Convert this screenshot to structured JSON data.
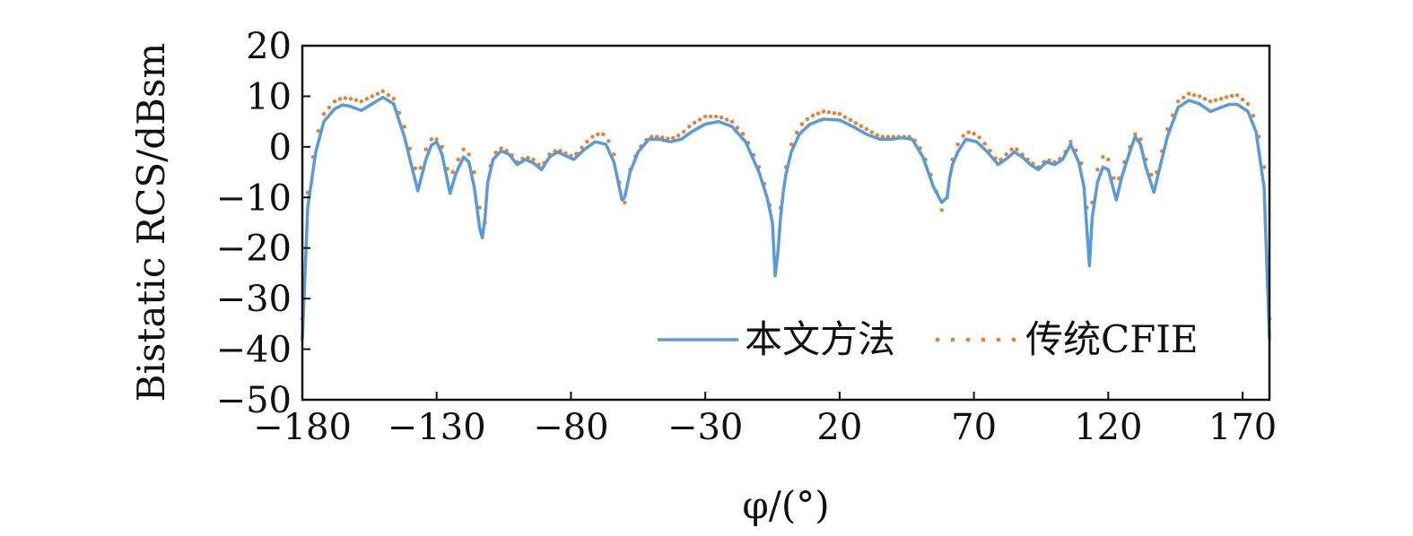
{
  "chart_data": {
    "type": "line",
    "title": "",
    "xlabel": "φ/(°)",
    "ylabel": "Bistatic RCS/dBsm",
    "xlim": [
      -180,
      180
    ],
    "ylim": [
      -50,
      20
    ],
    "xticks": [
      -180,
      -130,
      -80,
      -30,
      20,
      70,
      120,
      170
    ],
    "xtick_labels": [
      "−180",
      "−130",
      "−80",
      "−30",
      "20",
      "70",
      "120",
      "170"
    ],
    "yticks": [
      20,
      10,
      0,
      -10,
      -20,
      -30,
      -40,
      -50
    ],
    "ytick_labels": [
      "20",
      "10",
      "0",
      "−10",
      "−20",
      "−30",
      "−40",
      "−50"
    ],
    "grid": false,
    "legend_position": "bottom-right",
    "series": [
      {
        "name": "本文方法",
        "style": "solid",
        "color": "#5b9bd5",
        "x": [
          -180,
          -178,
          -175,
          -172,
          -168,
          -165,
          -162,
          -158,
          -154,
          -150,
          -146,
          -142,
          -139,
          -137,
          -134,
          -132,
          -130,
          -128,
          -125,
          -123,
          -120,
          -118,
          -116,
          -114,
          -113,
          -112,
          -111,
          -109,
          -106,
          -103,
          -100,
          -97,
          -94,
          -91,
          -88,
          -85,
          -83,
          -79,
          -75,
          -71,
          -67,
          -64,
          -62,
          -61,
          -60,
          -58,
          -55,
          -51,
          -47,
          -43,
          -39,
          -35,
          -30,
          -25,
          -20,
          -15,
          -10,
          -7,
          -5,
          -4,
          -3,
          -2,
          -1,
          0,
          2,
          5,
          9,
          14,
          20,
          25,
          30,
          35,
          39,
          43,
          47,
          51,
          55,
          58,
          60,
          61,
          62,
          64,
          67,
          71,
          75,
          79,
          83,
          85,
          88,
          91,
          94,
          97,
          100,
          103,
          106,
          109,
          111,
          112,
          113,
          114,
          116,
          118,
          120,
          123,
          125,
          128,
          130,
          132,
          134,
          137,
          139,
          142,
          146,
          150,
          154,
          158,
          162,
          165,
          168,
          172,
          175,
          178,
          180
        ],
        "y": [
          -38,
          -12,
          -1,
          5,
          7.5,
          8.3,
          8,
          7.2,
          8.5,
          9.8,
          8.5,
          2,
          -4.5,
          -8.7,
          -2.5,
          0.3,
          1,
          -1.5,
          -9.2,
          -5.5,
          -2,
          -3,
          -8,
          -16,
          -18,
          -14,
          -7,
          -2.5,
          -0.8,
          -1.5,
          -3.5,
          -2.5,
          -3.2,
          -4.5,
          -2,
          -1,
          -1.5,
          -2.5,
          -0.5,
          1,
          0.5,
          -3,
          -8,
          -10.5,
          -10,
          -5,
          -1,
          1.5,
          1.5,
          1,
          1.5,
          3,
          4.5,
          5,
          4,
          1,
          -5,
          -10,
          -15,
          -25.5,
          -21,
          -14,
          -9,
          -5.5,
          -1,
          2.5,
          4.5,
          5.5,
          5.3,
          4,
          2.5,
          1.5,
          1.5,
          1.8,
          1.5,
          -2,
          -8,
          -11,
          -10,
          -6,
          -3.5,
          -1,
          1.5,
          1,
          -1,
          -3.5,
          -2,
          -1,
          -2,
          -3.5,
          -4.5,
          -3,
          -3.5,
          -2.5,
          0.5,
          -3,
          -8,
          -16,
          -23.5,
          -14,
          -7,
          -4,
          -4.5,
          -10.5,
          -6,
          -1,
          2,
          0.5,
          -4,
          -9,
          -4.5,
          2,
          7.8,
          9.2,
          8.5,
          7,
          7.8,
          8.4,
          8.4,
          7,
          3,
          -8,
          -38
        ]
      },
      {
        "name": "传统CFIE",
        "style": "dotted",
        "color": "#ed7d31",
        "x": [
          -180,
          -178,
          -175,
          -172,
          -168,
          -165,
          -162,
          -158,
          -154,
          -150,
          -146,
          -142,
          -139,
          -137,
          -134,
          -132,
          -130,
          -128,
          -125,
          -123,
          -120,
          -118,
          -116,
          -114,
          -113,
          -112,
          -111,
          -109,
          -106,
          -103,
          -100,
          -97,
          -94,
          -91,
          -88,
          -85,
          -83,
          -79,
          -75,
          -71,
          -67,
          -64,
          -62,
          -61,
          -60,
          -58,
          -55,
          -51,
          -47,
          -43,
          -39,
          -35,
          -30,
          -25,
          -20,
          -15,
          -10,
          -7,
          -5,
          -4,
          -3,
          -2,
          -1,
          0,
          2,
          5,
          9,
          14,
          20,
          25,
          30,
          35,
          39,
          43,
          47,
          51,
          55,
          58,
          60,
          61,
          62,
          64,
          67,
          71,
          75,
          79,
          83,
          85,
          88,
          91,
          94,
          97,
          100,
          103,
          106,
          109,
          111,
          112,
          113,
          114,
          116,
          118,
          120,
          123,
          125,
          128,
          130,
          132,
          134,
          137,
          139,
          142,
          146,
          150,
          154,
          158,
          162,
          165,
          168,
          172,
          175,
          178,
          180
        ],
        "y": [
          -34,
          -9,
          1.5,
          6.5,
          9,
          9.7,
          9.5,
          9,
          10,
          11,
          9.5,
          4,
          -2.5,
          -6,
          -0.5,
          1.5,
          1.5,
          0,
          -6.5,
          -3.5,
          -0.5,
          -1.5,
          -5,
          -12,
          -19.5,
          -15,
          -6,
          -1.5,
          -0.3,
          -1,
          -3,
          -2,
          -2.5,
          -4,
          -1.5,
          -0.5,
          -1,
          -2,
          0.5,
          2.5,
          2.5,
          -1.5,
          -7,
          -12.5,
          -11,
          -4.5,
          -0.5,
          2,
          2,
          1.5,
          2.5,
          4.5,
          6,
          6,
          5,
          2,
          -4,
          -9,
          -14,
          -22,
          -19,
          -12,
          -7.5,
          -4,
          0.5,
          4,
          6,
          7,
          6.5,
          5,
          3.5,
          2,
          2,
          2,
          2,
          -1,
          -7,
          -12.5,
          -10,
          -5,
          -2.5,
          0.5,
          3,
          2.5,
          0,
          -3,
          -1,
          0,
          -1.5,
          -3,
          -4,
          -2.5,
          -3,
          -2,
          1,
          -1.5,
          -5,
          -12,
          -19,
          -11,
          -4.5,
          -2,
          -2.5,
          -8,
          -4.5,
          0,
          2.5,
          1.5,
          -2.5,
          -7,
          -3,
          3.5,
          9,
          10.5,
          10,
          9,
          9.5,
          10,
          10.2,
          8.5,
          5,
          -4,
          -34
        ]
      }
    ]
  }
}
